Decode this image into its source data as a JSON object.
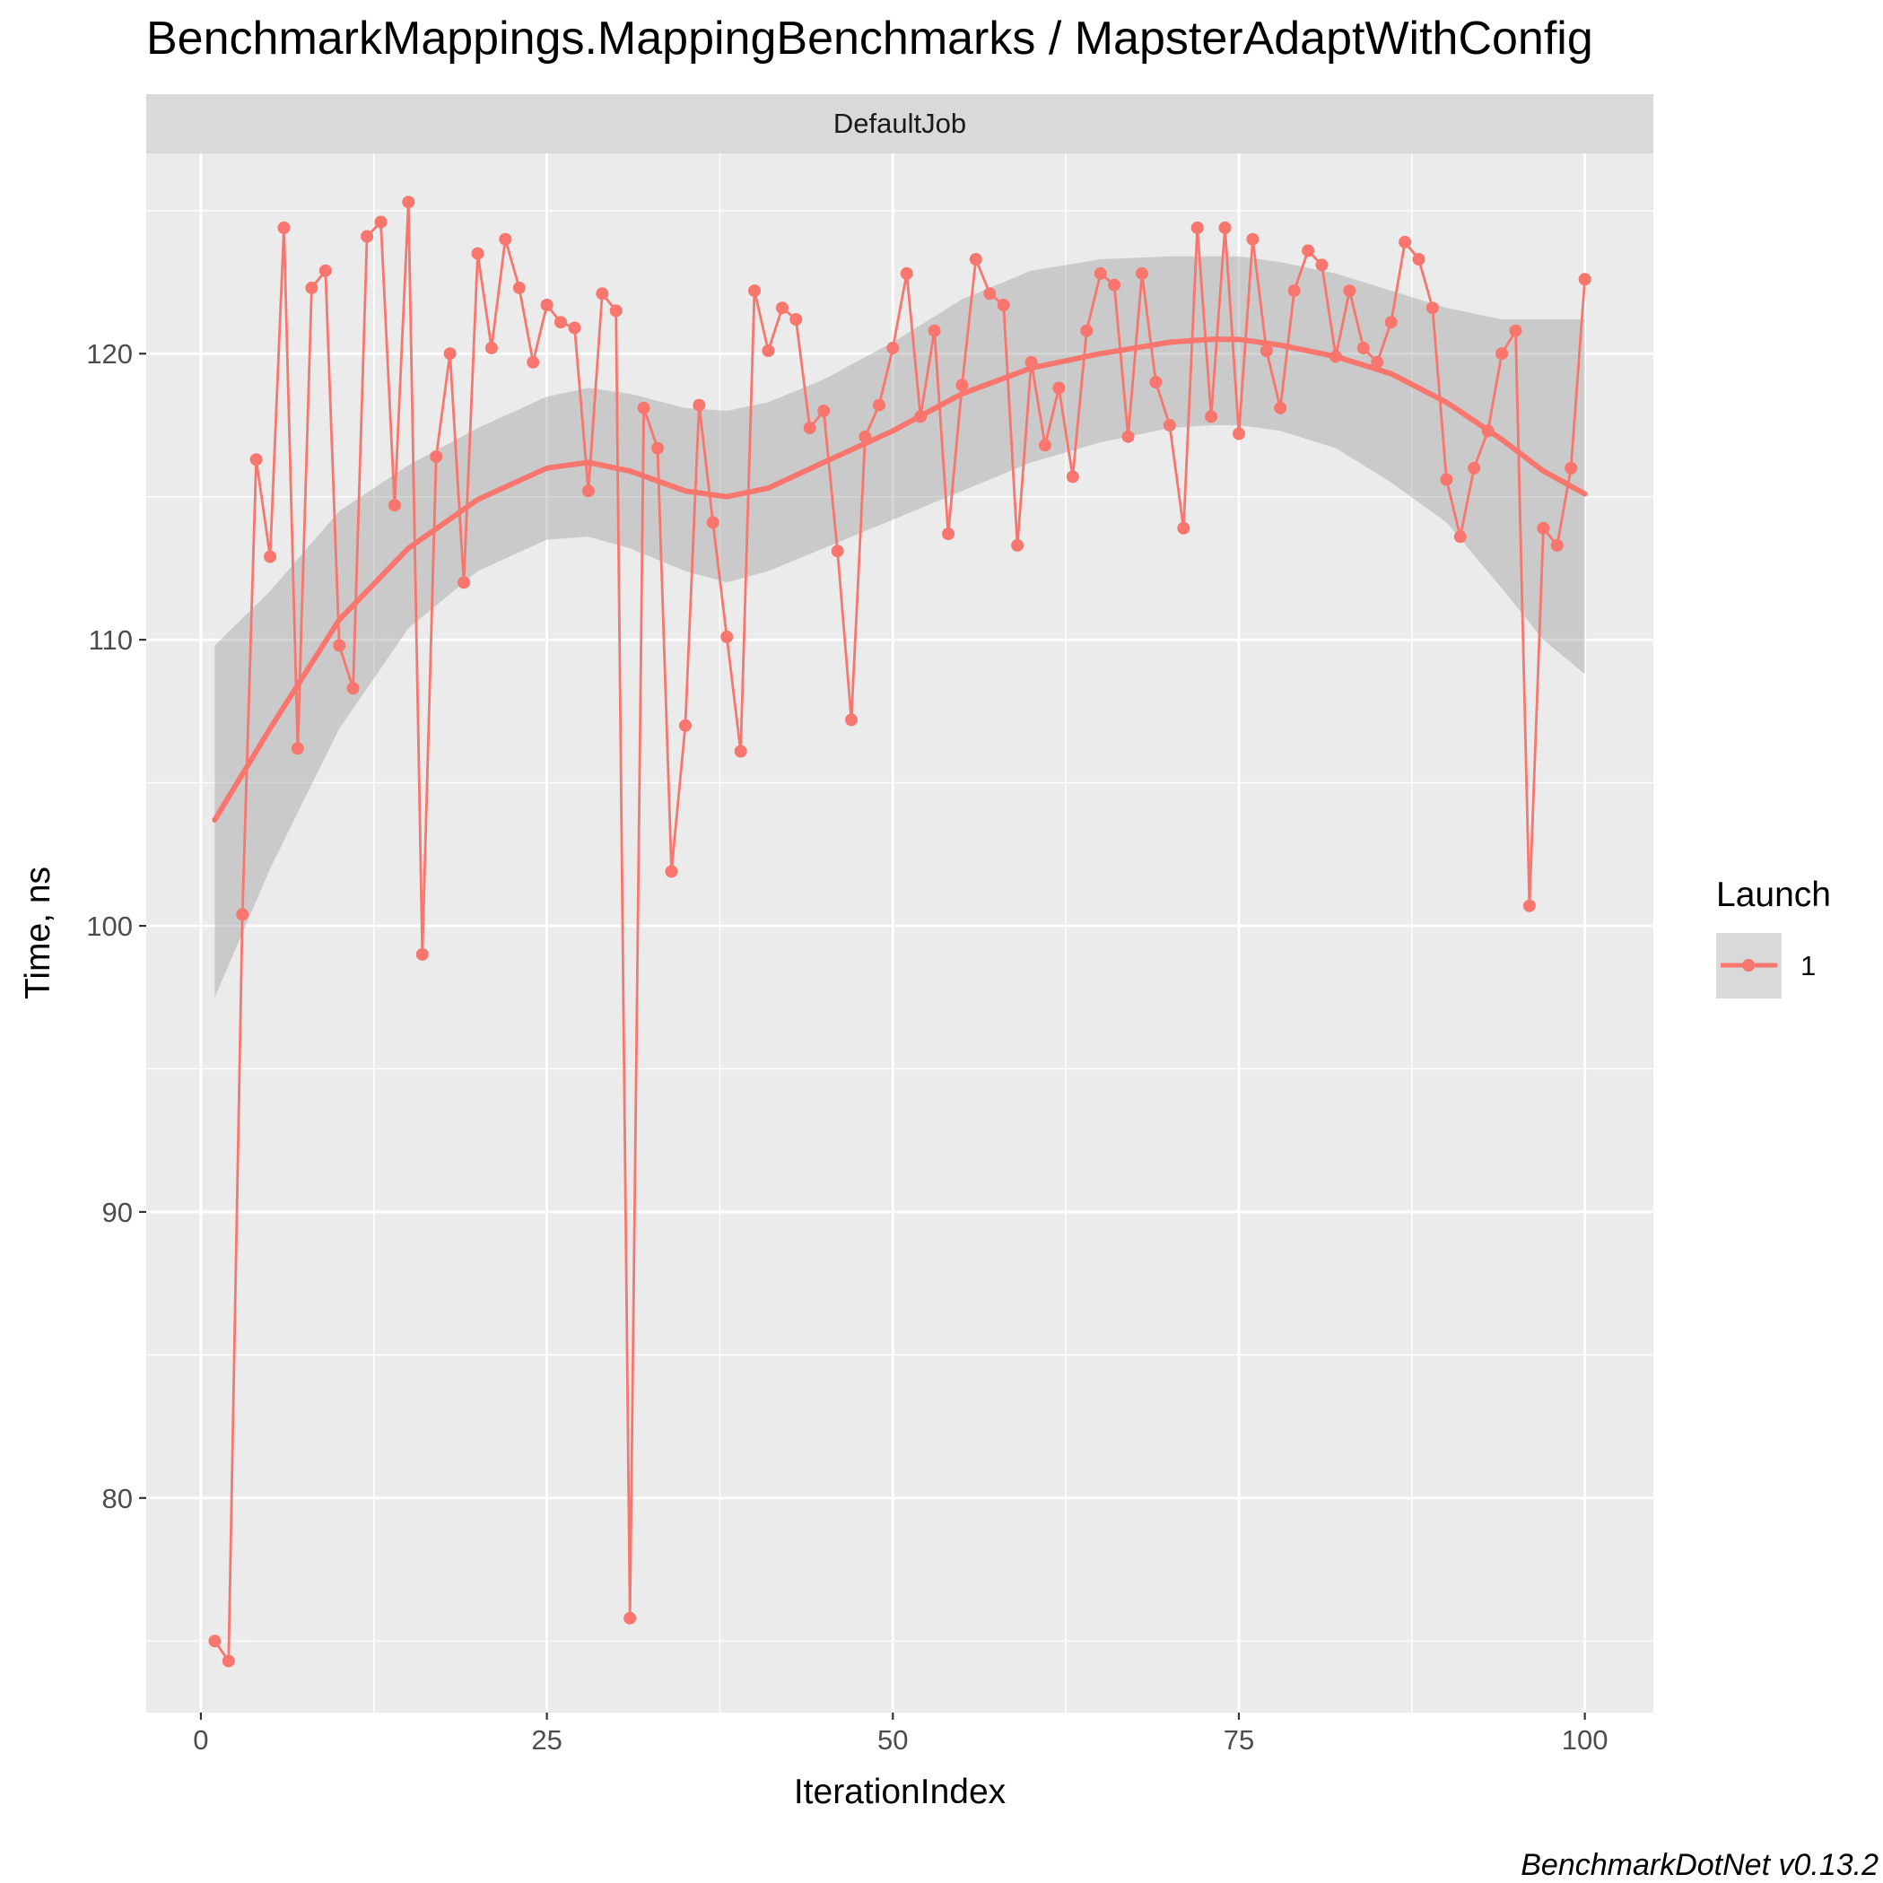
{
  "chart_data": {
    "type": "line",
    "title": "BenchmarkMappings.MappingBenchmarks / MapsterAdaptWithConfig",
    "facet_label": "DefaultJob",
    "xlabel": "IterationIndex",
    "ylabel": "Time, ns",
    "caption": "BenchmarkDotNet v0.13.2",
    "xlim": [
      -3.95,
      104.95
    ],
    "ylim": [
      72.5,
      127.0
    ],
    "x_ticks": [
      0,
      25,
      50,
      75,
      100
    ],
    "y_ticks": [
      80,
      90,
      100,
      110,
      120
    ],
    "grid": true,
    "legend": {
      "title": "Launch",
      "position": "right",
      "entries": [
        "1"
      ]
    },
    "colors": {
      "series": "#F8766D",
      "smooth": "#F8766D",
      "ribbon": "#999999",
      "panel": "#EBEBEB",
      "strip": "#D9D9D9",
      "grid": "#FFFFFF"
    },
    "series": [
      {
        "name": "1",
        "x": [
          1,
          2,
          3,
          4,
          5,
          6,
          7,
          8,
          9,
          10,
          11,
          12,
          13,
          14,
          15,
          16,
          17,
          18,
          19,
          20,
          21,
          22,
          23,
          24,
          25,
          26,
          27,
          28,
          29,
          30,
          31,
          32,
          33,
          34,
          35,
          36,
          37,
          38,
          39,
          40,
          41,
          42,
          43,
          44,
          45,
          46,
          47,
          48,
          49,
          50,
          51,
          52,
          53,
          54,
          55,
          56,
          57,
          58,
          59,
          60,
          61,
          62,
          63,
          64,
          65,
          66,
          67,
          68,
          69,
          70,
          71,
          72,
          73,
          74,
          75,
          76,
          77,
          78,
          79,
          80,
          81,
          82,
          83,
          84,
          85,
          86,
          87,
          88,
          89,
          90,
          91,
          92,
          93,
          94,
          95,
          96,
          97,
          98,
          99,
          100
        ],
        "y": [
          75.0,
          74.3,
          100.4,
          116.3,
          112.9,
          124.4,
          106.2,
          122.3,
          122.9,
          109.8,
          108.3,
          124.1,
          124.6,
          114.7,
          125.3,
          99.0,
          116.4,
          120.0,
          112.0,
          123.5,
          120.2,
          124.0,
          122.3,
          119.7,
          121.7,
          121.1,
          120.9,
          115.2,
          122.1,
          121.5,
          75.8,
          118.1,
          116.7,
          101.9,
          107.0,
          118.2,
          114.1,
          110.1,
          106.1,
          122.2,
          120.1,
          121.6,
          121.2,
          117.4,
          118.0,
          113.1,
          107.2,
          117.1,
          118.2,
          120.2,
          122.8,
          117.8,
          120.8,
          113.7,
          118.9,
          123.3,
          122.1,
          121.7,
          113.3,
          119.7,
          116.8,
          118.8,
          115.7,
          120.8,
          122.8,
          122.4,
          117.1,
          122.8,
          119.0,
          117.5,
          113.9,
          124.4,
          117.8,
          124.4,
          117.2,
          124.0,
          120.1,
          118.1,
          122.2,
          123.6,
          123.1,
          119.9,
          122.2,
          120.2,
          119.7,
          121.1,
          123.9,
          123.3,
          121.6,
          115.6,
          113.6,
          116.0,
          117.3,
          120.0,
          120.8,
          100.7,
          113.9,
          113.3,
          116.0,
          122.6
        ]
      }
    ],
    "smooth": {
      "x": [
        1,
        5,
        10,
        15,
        20,
        25,
        28,
        31,
        35,
        38,
        41,
        45,
        50,
        55,
        60,
        65,
        70,
        73,
        75,
        78,
        82,
        86,
        90,
        94,
        97,
        100
      ],
      "y": [
        103.7,
        106.9,
        110.7,
        113.2,
        114.9,
        116.0,
        116.2,
        115.9,
        115.2,
        115.0,
        115.3,
        116.2,
        117.3,
        118.6,
        119.5,
        120.0,
        120.4,
        120.5,
        120.5,
        120.3,
        119.9,
        119.3,
        118.3,
        117.0,
        115.9,
        115.1
      ],
      "lower": [
        97.5,
        102.0,
        106.9,
        110.4,
        112.4,
        113.5,
        113.6,
        113.2,
        112.4,
        112.0,
        112.4,
        113.2,
        114.2,
        115.2,
        116.2,
        116.9,
        117.4,
        117.5,
        117.5,
        117.3,
        116.7,
        115.5,
        114.1,
        111.8,
        110.0,
        108.8
      ],
      "upper": [
        109.8,
        111.7,
        114.5,
        116.1,
        117.4,
        118.5,
        118.8,
        118.6,
        118.1,
        118.0,
        118.3,
        119.1,
        120.4,
        121.9,
        122.9,
        123.3,
        123.4,
        123.4,
        123.4,
        123.2,
        122.8,
        122.2,
        121.6,
        121.2,
        121.2,
        121.2
      ]
    }
  }
}
